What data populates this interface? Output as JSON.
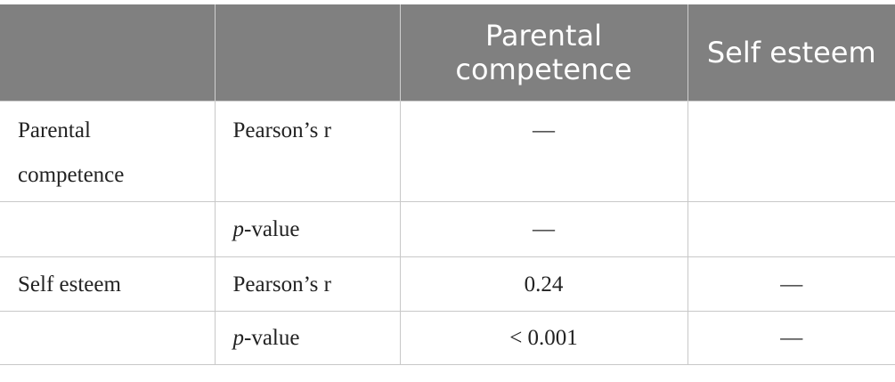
{
  "table": {
    "header": [
      null,
      null,
      "Parental competence",
      "Self esteem"
    ],
    "rows": [
      [
        "Parental competence",
        "Pearson’s r",
        "—",
        null
      ],
      [
        null,
        [
          "p",
          "-value"
        ],
        "—",
        null
      ],
      [
        "Self esteem",
        "Pearson’s r",
        "0.24",
        "—"
      ],
      [
        null,
        [
          "p",
          "-value"
        ],
        "< 0.001",
        "—"
      ]
    ]
  }
}
